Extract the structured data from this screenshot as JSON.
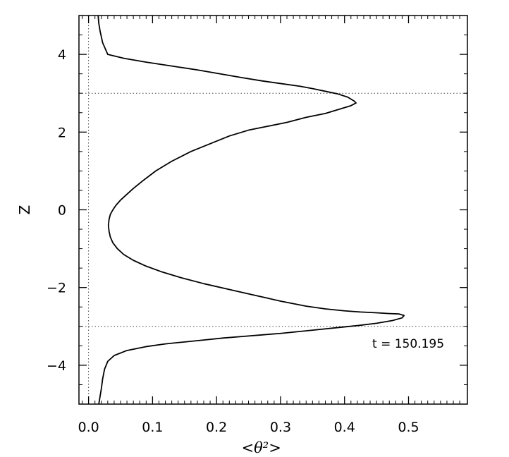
{
  "chart_data": {
    "type": "line",
    "xlabel": "<θ²>",
    "ylabel": "Z",
    "xlim": [
      -0.015,
      0.592
    ],
    "ylim": [
      -5,
      5
    ],
    "xticks": [
      "0.0",
      "0.1",
      "0.2",
      "0.3",
      "0.4",
      "0.5"
    ],
    "yticks": [
      "−4",
      "−2",
      "0",
      "2",
      "4"
    ],
    "annotation": "t  =  150.195",
    "reference_lines": {
      "x": [
        0.0
      ],
      "y": [
        3.0,
        -3.0
      ]
    },
    "series": [
      {
        "x": [
          0.015,
          0.016,
          0.018,
          0.022,
          0.03,
          0.055,
          0.09,
          0.13,
          0.17,
          0.205,
          0.24,
          0.27,
          0.3,
          0.33,
          0.35,
          0.37,
          0.39,
          0.405,
          0.415,
          0.418,
          0.41,
          0.39,
          0.37,
          0.34,
          0.31,
          0.28,
          0.25,
          0.22,
          0.19,
          0.16,
          0.13,
          0.105,
          0.085,
          0.07,
          0.06,
          0.05,
          0.043,
          0.038,
          0.034,
          0.032,
          0.031,
          0.032,
          0.034,
          0.038,
          0.045,
          0.055,
          0.07,
          0.09,
          0.115,
          0.145,
          0.18,
          0.22,
          0.26,
          0.3,
          0.34,
          0.37,
          0.4,
          0.425,
          0.45,
          0.47,
          0.485,
          0.493,
          0.49,
          0.475,
          0.45,
          0.42,
          0.39,
          0.36,
          0.33,
          0.3,
          0.27,
          0.24,
          0.21,
          0.18,
          0.15,
          0.12,
          0.09,
          0.06,
          0.04,
          0.03,
          0.025,
          0.022,
          0.02,
          0.018,
          0.016
        ],
        "y": [
          5.0,
          4.8,
          4.6,
          4.3,
          4.0,
          3.9,
          3.8,
          3.7,
          3.6,
          3.5,
          3.4,
          3.32,
          3.25,
          3.18,
          3.12,
          3.05,
          2.98,
          2.9,
          2.8,
          2.75,
          2.68,
          2.58,
          2.48,
          2.38,
          2.25,
          2.15,
          2.05,
          1.9,
          1.7,
          1.5,
          1.25,
          1.0,
          0.75,
          0.55,
          0.4,
          0.25,
          0.12,
          0.0,
          -0.12,
          -0.25,
          -0.4,
          -0.55,
          -0.7,
          -0.85,
          -1.0,
          -1.15,
          -1.3,
          -1.45,
          -1.6,
          -1.75,
          -1.9,
          -2.05,
          -2.2,
          -2.35,
          -2.48,
          -2.55,
          -2.6,
          -2.63,
          -2.65,
          -2.67,
          -2.68,
          -2.72,
          -2.78,
          -2.85,
          -2.92,
          -2.98,
          -3.03,
          -3.08,
          -3.13,
          -3.18,
          -3.22,
          -3.26,
          -3.3,
          -3.35,
          -3.4,
          -3.45,
          -3.52,
          -3.62,
          -3.75,
          -3.9,
          -4.1,
          -4.35,
          -4.6,
          -4.8,
          -5.0
        ]
      }
    ]
  }
}
